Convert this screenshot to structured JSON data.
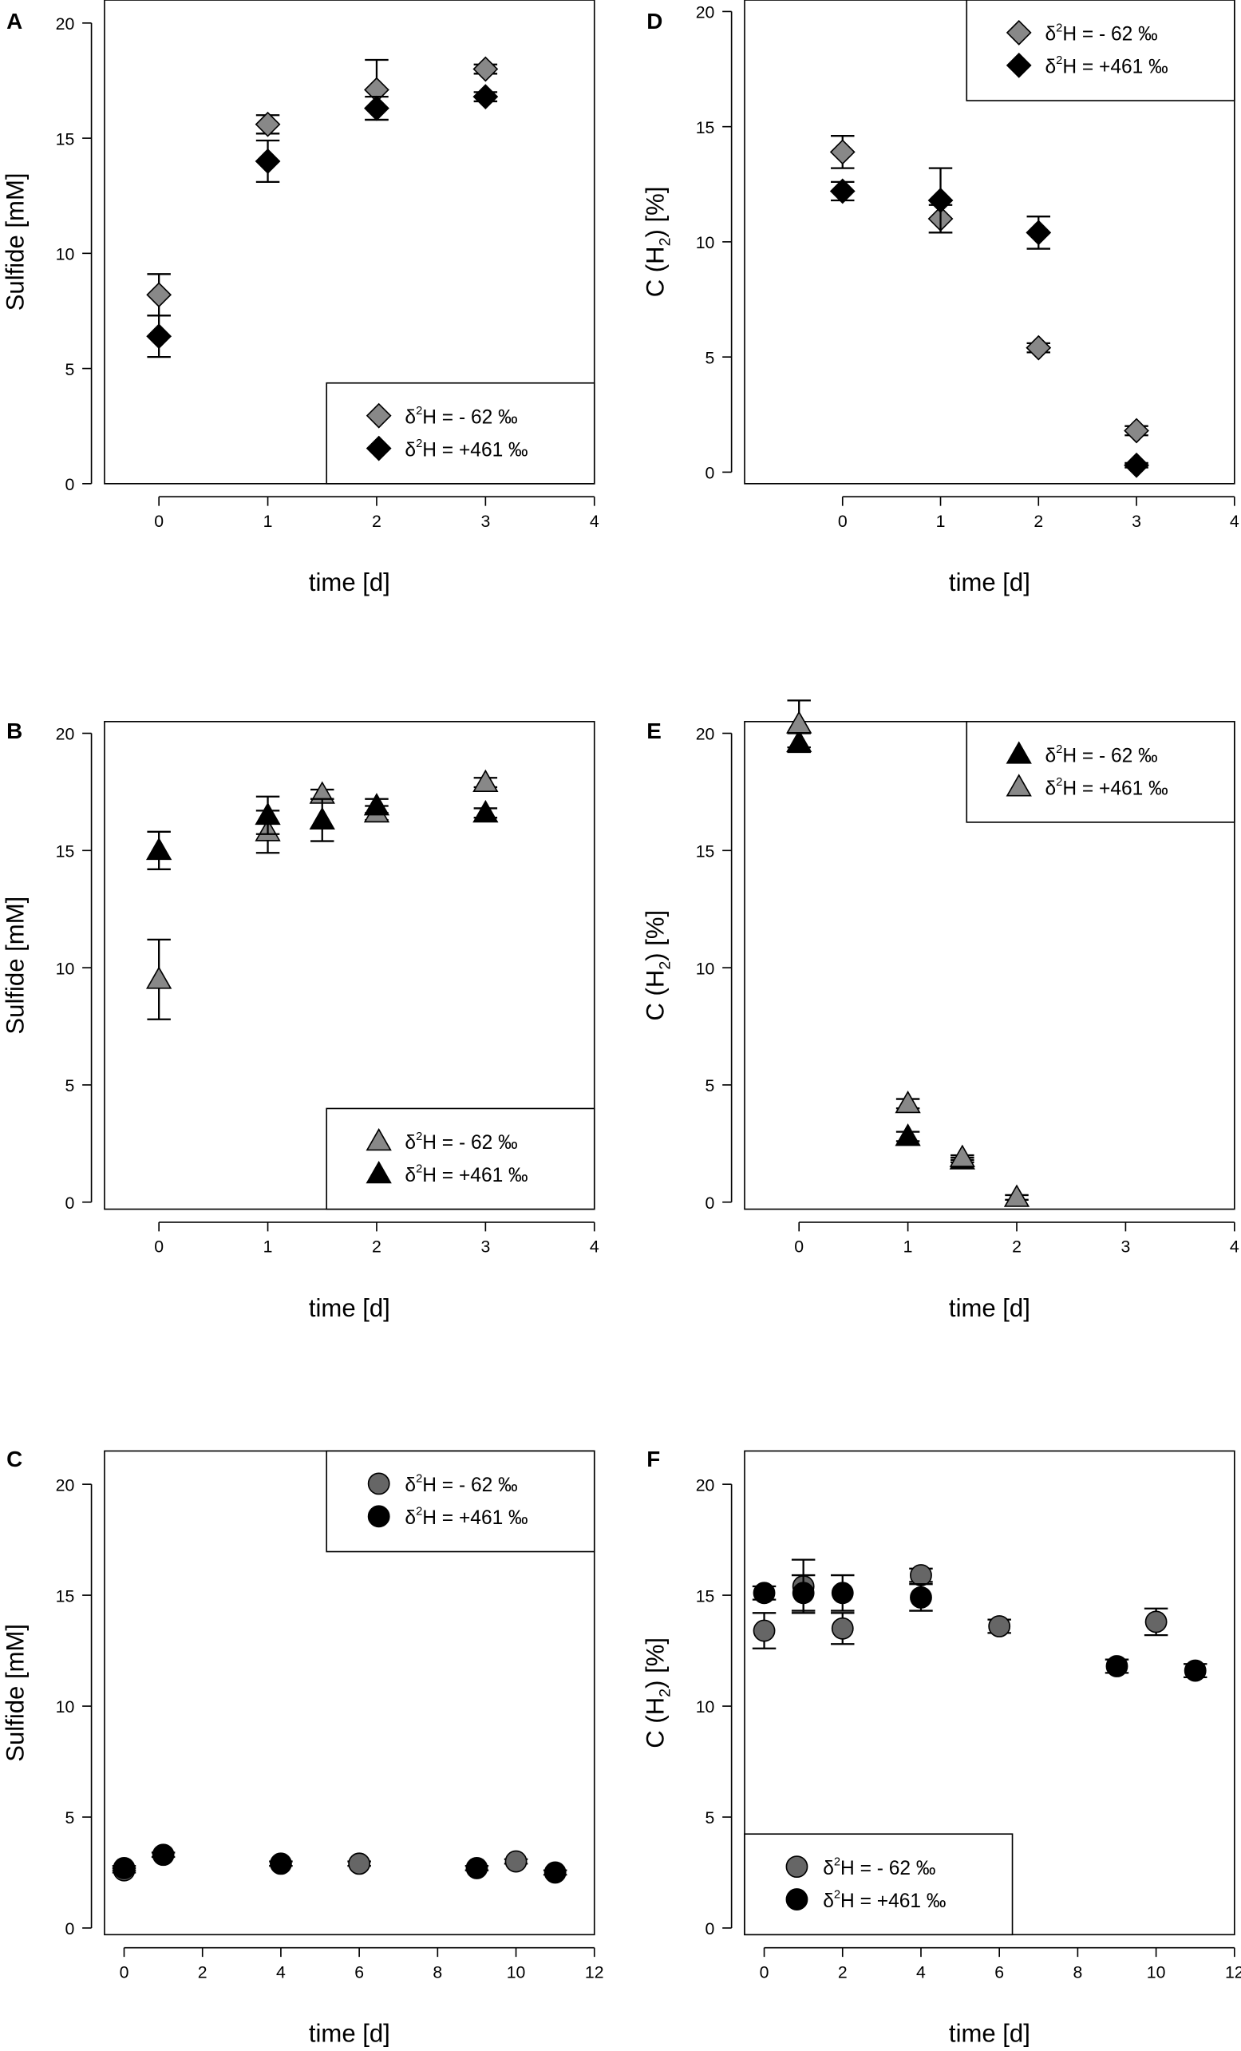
{
  "figure": {
    "title": ""
  },
  "colors": {
    "gray": "#888888",
    "black": "#000000",
    "darkgray": "#666666"
  },
  "chart_data": [
    {
      "id": "A",
      "panel_label": "A",
      "type": "scatter",
      "xlabel": "time [d]",
      "ylabel": "Sulfide [mM]",
      "xlim": [
        -0.5,
        4
      ],
      "ylim": [
        0,
        21
      ],
      "xticks": [
        "0",
        "1",
        "2",
        "3",
        "4"
      ],
      "yticks": [
        "0",
        "5",
        "10",
        "15",
        "20"
      ],
      "xtick_values": [
        0,
        1,
        2,
        3,
        4
      ],
      "ytick_values": [
        0,
        5,
        10,
        15,
        20
      ],
      "legend": {
        "position": "bottom-right"
      },
      "series": [
        {
          "name": "δ²H = - 62 ‰",
          "label_pre": "δ",
          "label_sup": "2",
          "label_post": "H = - 62 ‰",
          "marker": "diamond",
          "color": "#888888",
          "x": [
            0,
            1,
            2,
            3
          ],
          "y": [
            8.2,
            15.6,
            17.1,
            18.0
          ],
          "err": [
            0.9,
            0.4,
            1.3,
            0.2
          ]
        },
        {
          "name": "δ²H = +461 ‰",
          "label_pre": "δ",
          "label_sup": "2",
          "label_post": "H = +461 ‰",
          "marker": "diamond",
          "color": "#000000",
          "x": [
            0,
            1,
            2,
            3
          ],
          "y": [
            6.4,
            14.0,
            16.3,
            16.8
          ],
          "err": [
            0.9,
            0.9,
            0.5,
            0.2
          ]
        }
      ]
    },
    {
      "id": "D",
      "panel_label": "D",
      "type": "scatter",
      "xlabel": "time [d]",
      "ylabel_pre": "C (H",
      "ylabel_sub": "2",
      "ylabel_post": ") [%]",
      "xlim": [
        -1,
        4
      ],
      "ylim": [
        -0.5,
        20.5
      ],
      "xticks": [
        "0",
        "1",
        "2",
        "3",
        "4"
      ],
      "yticks": [
        "0",
        "5",
        "10",
        "15",
        "20"
      ],
      "xtick_values": [
        0,
        1,
        2,
        3,
        4
      ],
      "ytick_values": [
        0,
        5,
        10,
        15,
        20
      ],
      "legend": {
        "position": "top-right"
      },
      "series": [
        {
          "name": "δ²H = - 62 ‰",
          "label_pre": "δ",
          "label_sup": "2",
          "label_post": "H = - 62 ‰",
          "marker": "diamond",
          "color": "#888888",
          "x": [
            0,
            1,
            2,
            3
          ],
          "y": [
            13.9,
            11.0,
            5.4,
            1.8
          ],
          "err": [
            0.7,
            0.6,
            0.2,
            0.2
          ]
        },
        {
          "name": "δ²H = +461 ‰",
          "label_pre": "δ",
          "label_sup": "2",
          "label_post": "H = +461 ‰",
          "marker": "diamond",
          "color": "#000000",
          "x": [
            0,
            1,
            2,
            3
          ],
          "y": [
            12.2,
            11.8,
            10.4,
            0.3
          ],
          "err": [
            0.4,
            1.4,
            0.7,
            0.1
          ]
        }
      ]
    },
    {
      "id": "B",
      "panel_label": "B",
      "type": "scatter",
      "xlabel": "time [d]",
      "ylabel": "Sulfide [mM]",
      "xlim": [
        -0.5,
        4
      ],
      "ylim": [
        -0.3,
        20.5
      ],
      "xticks": [
        "0",
        "1",
        "2",
        "3",
        "4"
      ],
      "yticks": [
        "0",
        "5",
        "10",
        "15",
        "20"
      ],
      "xtick_values": [
        0,
        1,
        2,
        3,
        4
      ],
      "ytick_values": [
        0,
        5,
        10,
        15,
        20
      ],
      "legend": {
        "position": "bottom-right"
      },
      "series": [
        {
          "name": "δ²H = - 62 ‰",
          "label_pre": "δ",
          "label_sup": "2",
          "label_post": "H = - 62 ‰",
          "marker": "triangle",
          "color": "#888888",
          "x": [
            0,
            1,
            1.5,
            2,
            3
          ],
          "y": [
            9.5,
            15.8,
            17.4,
            16.6,
            17.9
          ],
          "err": [
            1.7,
            0.9,
            0.2,
            0.3,
            0.2
          ]
        },
        {
          "name": "δ²H = +461 ‰",
          "label_pre": "δ",
          "label_sup": "2",
          "label_post": "H = +461 ‰",
          "marker": "triangle",
          "color": "#000000",
          "x": [
            0,
            1,
            1.5,
            2,
            3
          ],
          "y": [
            15.0,
            16.5,
            16.3,
            16.9,
            16.6
          ],
          "err": [
            0.8,
            0.8,
            0.9,
            0.3,
            0.2
          ]
        }
      ]
    },
    {
      "id": "E",
      "panel_label": "E",
      "type": "scatter",
      "xlabel": "time [d]",
      "ylabel_pre": "C (H",
      "ylabel_sub": "2",
      "ylabel_post": ") [%]",
      "xlim": [
        -0.5,
        4
      ],
      "ylim": [
        -0.3,
        20.5
      ],
      "xticks": [
        "0",
        "1",
        "2",
        "3",
        "4"
      ],
      "yticks": [
        "0",
        "5",
        "10",
        "15",
        "20"
      ],
      "xtick_values": [
        0,
        1,
        2,
        3,
        4
      ],
      "ytick_values": [
        0,
        5,
        10,
        15,
        20
      ],
      "legend": {
        "position": "top-right"
      },
      "series": [
        {
          "name": "δ²H = - 62 ‰",
          "label_pre": "δ",
          "label_sup": "2",
          "label_post": "H = - 62 ‰",
          "marker": "triangle",
          "color": "#000000",
          "x": [
            0,
            1,
            1.5
          ],
          "y": [
            19.6,
            2.8,
            1.8
          ],
          "err": [
            0.4,
            0.2,
            0.1
          ]
        },
        {
          "name": "δ²H = +461 ‰",
          "label_pre": "δ",
          "label_sup": "2",
          "label_post": "H = +461 ‰",
          "marker": "triangle",
          "color": "#888888",
          "x": [
            0,
            1,
            1.5,
            2
          ],
          "y": [
            20.4,
            4.2,
            1.9,
            0.2
          ],
          "err": [
            1.0,
            0.2,
            0.1,
            0.1
          ]
        }
      ]
    },
    {
      "id": "C",
      "panel_label": "C",
      "type": "scatter",
      "xlabel": "time [d]",
      "ylabel": "Sulfide [mM]",
      "xlim": [
        -0.5,
        12
      ],
      "ylim": [
        -0.3,
        21.5
      ],
      "xticks": [
        "0",
        "2",
        "4",
        "6",
        "8",
        "10",
        "12"
      ],
      "yticks": [
        "0",
        "5",
        "10",
        "15",
        "20"
      ],
      "xtick_values": [
        0,
        2,
        4,
        6,
        8,
        10,
        12
      ],
      "ytick_values": [
        0,
        5,
        10,
        15,
        20
      ],
      "legend": {
        "position": "top-right"
      },
      "series": [
        {
          "name": "δ²H = - 62 ‰",
          "label_pre": "δ",
          "label_sup": "2",
          "label_post": "H = - 62 ‰",
          "marker": "circle",
          "color": "#666666",
          "x": [
            0,
            6,
            10
          ],
          "y": [
            2.6,
            2.9,
            3.0
          ],
          "err": [
            0.1,
            0.1,
            0.1
          ]
        },
        {
          "name": "δ²H = +461 ‰",
          "label_pre": "δ",
          "label_sup": "2",
          "label_post": "H = +461 ‰",
          "marker": "circle",
          "color": "#000000",
          "x": [
            0,
            1,
            4,
            9,
            11
          ],
          "y": [
            2.7,
            3.3,
            2.9,
            2.7,
            2.5
          ],
          "err": [
            0.1,
            0.1,
            0.1,
            0.1,
            0.1
          ]
        }
      ]
    },
    {
      "id": "F",
      "panel_label": "F",
      "type": "scatter",
      "xlabel": "time [d]",
      "ylabel_pre": "C (H",
      "ylabel_sub": "2",
      "ylabel_post": ") [%]",
      "xlim": [
        -0.5,
        12
      ],
      "ylim": [
        -0.3,
        21.5
      ],
      "xticks": [
        "0",
        "2",
        "4",
        "6",
        "8",
        "10",
        "12"
      ],
      "yticks": [
        "0",
        "5",
        "10",
        "15",
        "20"
      ],
      "xtick_values": [
        0,
        2,
        4,
        6,
        8,
        10,
        12
      ],
      "ytick_values": [
        0,
        5,
        10,
        15,
        20
      ],
      "legend": {
        "position": "bottom-left"
      },
      "series": [
        {
          "name": "δ²H = - 62 ‰",
          "label_pre": "δ",
          "label_sup": "2",
          "label_post": "H = - 62 ‰",
          "marker": "circle",
          "color": "#666666",
          "x": [
            0,
            1,
            2,
            4,
            6,
            10
          ],
          "y": [
            13.4,
            15.4,
            13.5,
            15.9,
            13.6,
            13.8
          ],
          "err": [
            0.8,
            1.2,
            0.7,
            0.3,
            0.3,
            0.6
          ]
        },
        {
          "name": "δ²H = +461 ‰",
          "label_pre": "δ",
          "label_sup": "2",
          "label_post": "H = +461 ‰",
          "marker": "circle",
          "color": "#000000",
          "x": [
            0,
            1,
            2,
            4,
            9,
            11
          ],
          "y": [
            15.1,
            15.1,
            15.1,
            14.9,
            11.8,
            11.6
          ],
          "err": [
            0.3,
            0.8,
            0.8,
            0.6,
            0.3,
            0.3
          ]
        }
      ]
    }
  ]
}
